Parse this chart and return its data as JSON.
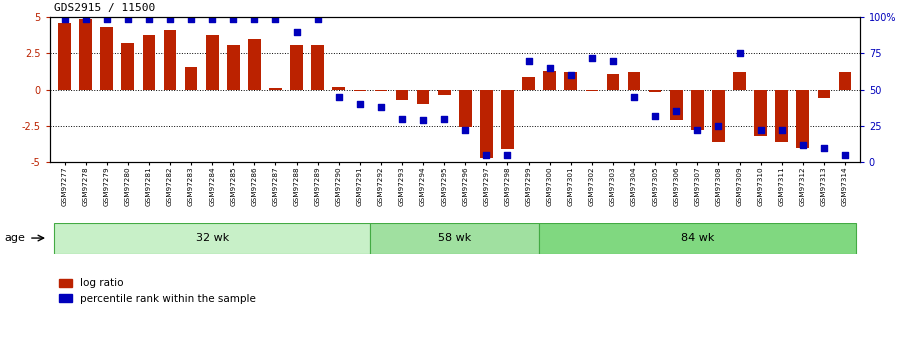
{
  "title": "GDS2915 / 11500",
  "samples": [
    "GSM97277",
    "GSM97278",
    "GSM97279",
    "GSM97280",
    "GSM97281",
    "GSM97282",
    "GSM97283",
    "GSM97284",
    "GSM97285",
    "GSM97286",
    "GSM97287",
    "GSM97288",
    "GSM97289",
    "GSM97290",
    "GSM97291",
    "GSM97292",
    "GSM97293",
    "GSM97294",
    "GSM97295",
    "GSM97296",
    "GSM97297",
    "GSM97298",
    "GSM97299",
    "GSM97300",
    "GSM97301",
    "GSM97302",
    "GSM97303",
    "GSM97304",
    "GSM97305",
    "GSM97306",
    "GSM97307",
    "GSM97308",
    "GSM97309",
    "GSM97310",
    "GSM97311",
    "GSM97312",
    "GSM97313",
    "GSM97314"
  ],
  "log_ratio": [
    4.6,
    4.9,
    4.3,
    3.2,
    3.8,
    4.1,
    1.6,
    3.8,
    3.1,
    3.5,
    0.1,
    3.1,
    3.1,
    0.2,
    -0.1,
    -0.1,
    -0.7,
    -1.0,
    -0.4,
    -2.6,
    -4.7,
    -4.1,
    0.9,
    1.3,
    1.2,
    -0.1,
    1.1,
    1.2,
    -0.15,
    -2.1,
    -2.8,
    -3.6,
    1.2,
    -3.2,
    -3.6,
    -4.0,
    -0.55,
    1.2
  ],
  "percentile": [
    99,
    99,
    99,
    99,
    99,
    99,
    99,
    99,
    99,
    99,
    99,
    90,
    99,
    45,
    40,
    38,
    30,
    29,
    30,
    22,
    5,
    5,
    70,
    65,
    60,
    72,
    70,
    45,
    32,
    35,
    22,
    25,
    75,
    22,
    22,
    12,
    10,
    5
  ],
  "age_groups": [
    {
      "label": "32 wk",
      "start": 0,
      "end": 14
    },
    {
      "label": "58 wk",
      "start": 15,
      "end": 22
    },
    {
      "label": "84 wk",
      "start": 23,
      "end": 37
    }
  ],
  "bar_color": "#bb2200",
  "dot_color": "#0000bb",
  "ylim": [
    -5,
    5
  ],
  "yticks_left": [
    -5,
    -2.5,
    0,
    2.5,
    5
  ],
  "ytick_labels_left": [
    "-5",
    "-2.5",
    "0",
    "2.5",
    "5"
  ],
  "dotted_lines": [
    -2.5,
    0,
    2.5
  ],
  "right_ytick_vals": [
    -5,
    -2.5,
    0,
    2.5,
    5
  ],
  "right_ytick_labels": [
    "0",
    "25",
    "50",
    "75",
    "100%"
  ],
  "age_group_colors": [
    "#c8f0c8",
    "#a0e0a0",
    "#80d880"
  ],
  "age_group_border": "#44aa44"
}
